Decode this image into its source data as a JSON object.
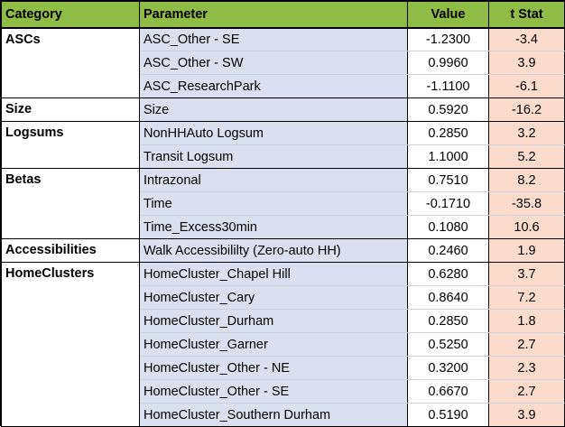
{
  "table": {
    "headers": [
      "Category",
      "Parameter",
      "Value",
      "t Stat"
    ],
    "groups": [
      {
        "category": "ASCs",
        "rows": [
          {
            "parameter": "ASC_Other - SE",
            "value": "-1.2300",
            "tstat": "-3.4"
          },
          {
            "parameter": "ASC_Other - SW",
            "value": "0.9960",
            "tstat": "3.9"
          },
          {
            "parameter": "ASC_ResearchPark",
            "value": "-1.1100",
            "tstat": "-6.1"
          }
        ]
      },
      {
        "category": "Size",
        "rows": [
          {
            "parameter": "Size",
            "value": "0.5920",
            "tstat": "-16.2"
          }
        ]
      },
      {
        "category": "Logsums",
        "rows": [
          {
            "parameter": "NonHHAuto Logsum",
            "value": "0.2850",
            "tstat": "3.2"
          },
          {
            "parameter": "Transit Logsum",
            "value": "1.1000",
            "tstat": "5.2"
          }
        ]
      },
      {
        "category": "Betas",
        "rows": [
          {
            "parameter": "Intrazonal",
            "value": "0.7510",
            "tstat": "8.2"
          },
          {
            "parameter": "Time",
            "value": "-0.1710",
            "tstat": "-35.8"
          },
          {
            "parameter": "Time_Excess30min",
            "value": "0.1080",
            "tstat": "10.6"
          }
        ]
      },
      {
        "category": "Accessibilities",
        "rows": [
          {
            "parameter": "Walk Accessibililty (Zero-auto HH)",
            "value": "0.2460",
            "tstat": "1.9"
          }
        ]
      },
      {
        "category": "HomeClusters",
        "rows": [
          {
            "parameter": "HomeCluster_Chapel Hill",
            "value": "0.6280",
            "tstat": "3.7"
          },
          {
            "parameter": "HomeCluster_Cary",
            "value": "0.8640",
            "tstat": "7.2"
          },
          {
            "parameter": "HomeCluster_Durham",
            "value": "0.2850",
            "tstat": "1.8"
          },
          {
            "parameter": "HomeCluster_Garner",
            "value": "0.5250",
            "tstat": "2.7"
          },
          {
            "parameter": "HomeCluster_Other - NE",
            "value": "0.3200",
            "tstat": "2.3"
          },
          {
            "parameter": "HomeCluster_Other - SE",
            "value": "0.6670",
            "tstat": "2.7"
          },
          {
            "parameter": "HomeCluster_Southern Durham",
            "value": "0.5190",
            "tstat": "3.9"
          }
        ]
      }
    ]
  }
}
